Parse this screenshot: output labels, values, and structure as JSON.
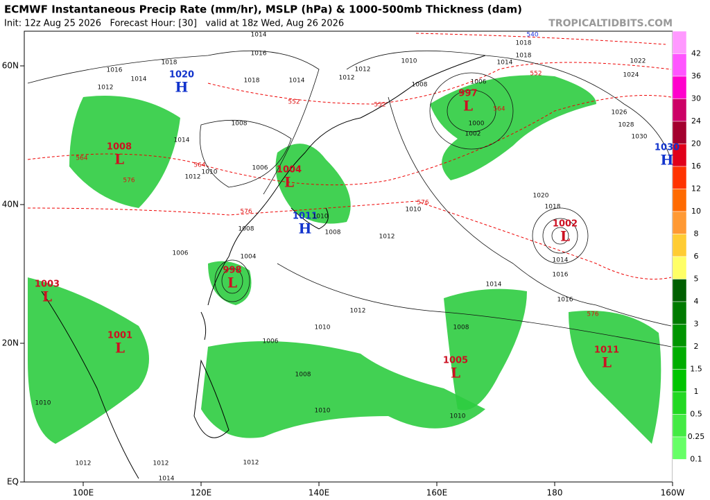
{
  "header": {
    "title": "ECMWF Instantaneous Precip Rate (mm/hr), MSLP (hPa) & 1000-500mb Thickness (dam)",
    "subtitle": "Init: 12z Aug 25 2026   Forecast Hour: [30]   valid at 18z Wed, Aug 26 2026",
    "watermark": "TROPICALTIDBITS.COM"
  },
  "map": {
    "lon_ticks": [
      {
        "value": 100,
        "label": "100E"
      },
      {
        "value": 120,
        "label": "120E"
      },
      {
        "value": 140,
        "label": "140E"
      },
      {
        "value": 160,
        "label": "160E"
      },
      {
        "value": 180,
        "label": "180"
      },
      {
        "value": 200,
        "label": "160W"
      }
    ],
    "lat_ticks": [
      {
        "value": 60,
        "label": "60N"
      },
      {
        "value": 40,
        "label": "40N"
      },
      {
        "value": 20,
        "label": "20N"
      },
      {
        "value": 0,
        "label": "EQ"
      }
    ],
    "centers": [
      {
        "letter": "H",
        "value": 1020
      },
      {
        "letter": "L",
        "value": 1008
      },
      {
        "letter": "L",
        "value": 1004
      },
      {
        "letter": "H",
        "value": 1011
      },
      {
        "letter": "L",
        "value": 998
      },
      {
        "letter": "L",
        "value": 997
      },
      {
        "letter": "L",
        "value": 1002
      },
      {
        "letter": "H",
        "value": 1030
      },
      {
        "letter": "L",
        "value": 1003
      },
      {
        "letter": "L",
        "value": 1001
      },
      {
        "letter": "L",
        "value": 1005
      },
      {
        "letter": "L",
        "value": 1011
      }
    ],
    "isobar_labels": [
      1016,
      1014,
      1012,
      1010,
      1018,
      1018,
      1014,
      1022,
      1024,
      1026,
      1028,
      1030,
      1008,
      1006,
      1000,
      1002,
      1020,
      1018,
      1014,
      1016,
      1016,
      1014,
      1012,
      1010,
      1008,
      1006,
      1008,
      1010,
      1010,
      1012,
      1014,
      1012,
      1012,
      1010,
      1016,
      1014,
      1012,
      1018,
      1018,
      1014,
      1012,
      1008,
      1006,
      1010,
      1012,
      1014,
      1004,
      1006,
      1008,
      1010,
      1012,
      1010,
      1008
    ],
    "thickness_labels": [
      552,
      552,
      564,
      576,
      576,
      564,
      552,
      576,
      576,
      540,
      564
    ]
  },
  "colorbar": {
    "labels": [
      42,
      36,
      30,
      24,
      20,
      16,
      12,
      10,
      8,
      6,
      5,
      4,
      3,
      2,
      1.5,
      1,
      0.5,
      0.25,
      0.1
    ],
    "colors": [
      "#ff99ff",
      "#ff55ff",
      "#ff00cc",
      "#cc0066",
      "#a3002e",
      "#e0001a",
      "#ff3300",
      "#ff6a00",
      "#ff9933",
      "#ffcc33",
      "#ffff66",
      "#005f00",
      "#007a00",
      "#009400",
      "#00ad00",
      "#00c400",
      "#22d822",
      "#44ea44",
      "#66ff66",
      "#ffffff"
    ]
  }
}
